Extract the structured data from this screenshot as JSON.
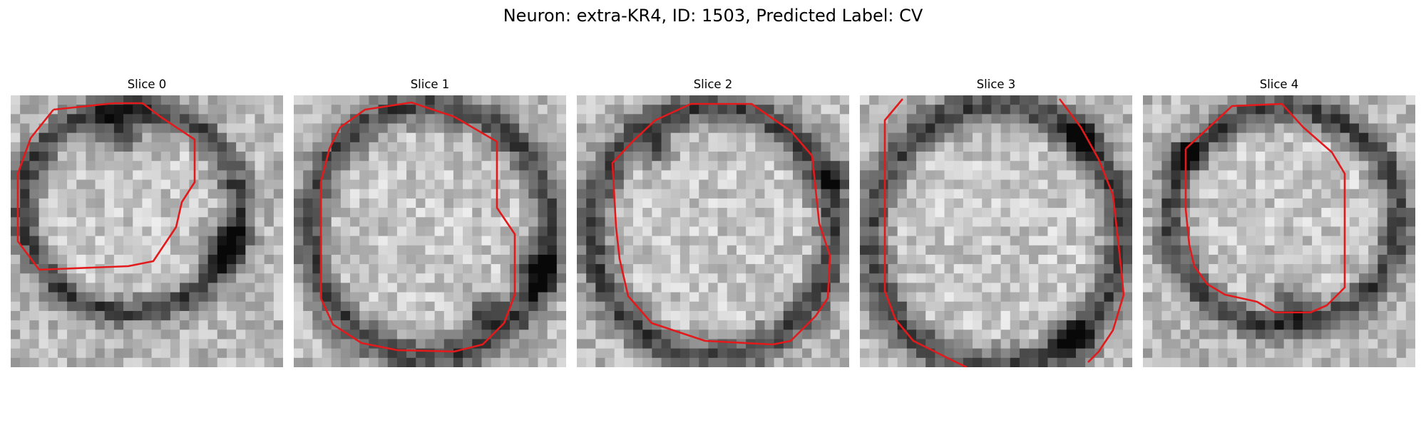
{
  "figure": {
    "title": "Neuron: extra-KR4, ID: 1503, Predicted Label: CV"
  },
  "colors": {
    "contour": "#e31a1c",
    "background": "#ffffff"
  },
  "slices": [
    {
      "title": "Slice 0"
    },
    {
      "title": "Slice 1"
    },
    {
      "title": "Slice 2"
    },
    {
      "title": "Slice 3"
    },
    {
      "title": "Slice 4"
    }
  ]
}
